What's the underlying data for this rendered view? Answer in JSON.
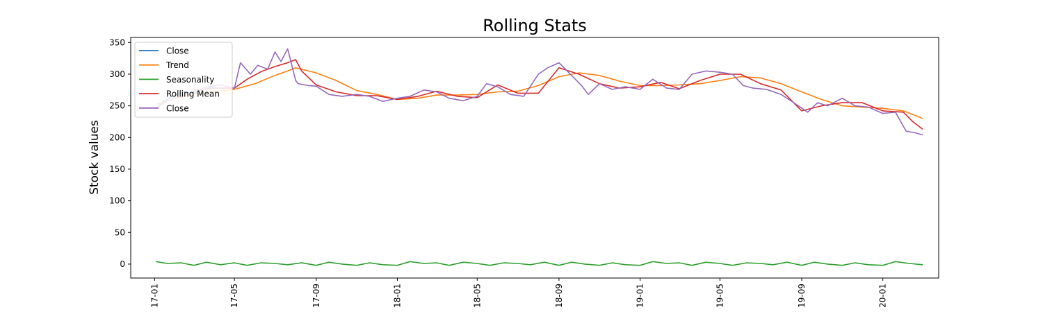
{
  "chart_data": {
    "type": "line",
    "title": "Rolling Stats",
    "xlabel": "",
    "ylabel": "Stock values",
    "ylim": [
      -22,
      358
    ],
    "xlim": [
      "2016-11-26",
      "2020-03-25"
    ],
    "yticks": [
      0,
      50,
      100,
      150,
      200,
      250,
      300,
      350
    ],
    "xticks": [
      "17-01",
      "17-05",
      "17-09",
      "18-01",
      "18-05",
      "18-09",
      "19-01",
      "19-05",
      "19-09",
      "20-01"
    ],
    "grid": false,
    "legend": {
      "placement": "top-left",
      "entries": [
        "Close",
        "Trend",
        "Seasonality",
        "Rolling Mean",
        "Close"
      ]
    },
    "series": [
      {
        "name": "Close",
        "color": "#1f77b4",
        "x": [
          "2017-01-03",
          "2017-01-15",
          "2017-01-31",
          "2017-02-14",
          "2017-02-28",
          "2017-03-14",
          "2017-03-31"
        ],
        "values": [
          246,
          258,
          266,
          272,
          269,
          276,
          280
        ]
      },
      {
        "name": "Trend",
        "color": "#ff7f0e",
        "x": [
          "2017-01-03",
          "2017-02-01",
          "2017-03-01",
          "2017-04-01",
          "2017-05-01",
          "2017-06-01",
          "2017-07-01",
          "2017-07-20",
          "2017-08-01",
          "2017-09-01",
          "2017-10-01",
          "2017-11-01",
          "2017-12-01",
          "2018-01-01",
          "2018-02-01",
          "2018-03-01",
          "2018-04-01",
          "2018-05-01",
          "2018-06-01",
          "2018-07-01",
          "2018-08-01",
          "2018-09-01",
          "2018-10-01",
          "2018-11-01",
          "2018-12-01",
          "2019-01-01",
          "2019-02-01",
          "2019-03-01",
          "2019-04-01",
          "2019-05-01",
          "2019-06-01",
          "2019-07-01",
          "2019-08-01",
          "2019-09-01",
          "2019-10-01",
          "2019-11-01",
          "2019-12-01",
          "2020-01-01",
          "2020-02-01",
          "2020-03-01"
        ],
        "values": [
          252,
          262,
          268,
          272,
          276,
          285,
          298,
          305,
          310,
          302,
          290,
          274,
          268,
          260,
          262,
          267,
          267,
          268,
          272,
          273,
          282,
          296,
          302,
          298,
          289,
          282,
          282,
          283,
          285,
          290,
          296,
          294,
          285,
          272,
          260,
          250,
          248,
          246,
          242,
          230
        ]
      },
      {
        "name": "Seasonality",
        "color": "#2ca02c",
        "x": [
          "2017-01-03",
          "2017-01-20",
          "2017-02-10",
          "2017-03-01",
          "2017-03-20",
          "2017-04-10",
          "2017-05-01",
          "2017-05-20",
          "2017-06-10",
          "2017-07-01",
          "2017-07-20",
          "2017-08-10",
          "2017-09-01",
          "2017-09-20",
          "2017-10-10",
          "2017-11-01",
          "2017-11-20",
          "2017-12-10",
          "2018-01-01",
          "2018-01-20",
          "2018-02-10",
          "2018-03-01",
          "2018-03-20",
          "2018-04-10",
          "2018-05-01",
          "2018-05-20",
          "2018-06-10",
          "2018-07-01",
          "2018-07-20",
          "2018-08-10",
          "2018-09-01",
          "2018-09-20",
          "2018-10-10",
          "2018-11-01",
          "2018-11-20",
          "2018-12-10",
          "2019-01-01",
          "2019-01-20",
          "2019-02-10",
          "2019-03-01",
          "2019-03-20",
          "2019-04-10",
          "2019-05-01",
          "2019-05-20",
          "2019-06-10",
          "2019-07-01",
          "2019-07-20",
          "2019-08-10",
          "2019-09-01",
          "2019-09-20",
          "2019-10-10",
          "2019-11-01",
          "2019-11-20",
          "2019-12-10",
          "2020-01-01",
          "2020-01-20",
          "2020-02-10",
          "2020-03-01"
        ],
        "values": [
          4,
          1,
          2,
          -2,
          3,
          -1,
          2,
          -2,
          2,
          1,
          -1,
          2,
          -2,
          3,
          0,
          -2,
          2,
          -1,
          -2,
          4,
          1,
          2,
          -2,
          3,
          1,
          -2,
          2,
          1,
          -1,
          3,
          -2,
          3,
          0,
          -2,
          2,
          -1,
          -2,
          4,
          1,
          2,
          -2,
          3,
          1,
          -2,
          2,
          1,
          -1,
          3,
          -2,
          3,
          0,
          -2,
          2,
          -1,
          -2,
          4,
          1,
          -1
        ]
      },
      {
        "name": "Rolling Mean",
        "color": "#d62728",
        "x": [
          "2017-03-01",
          "2017-04-01",
          "2017-05-01",
          "2017-05-20",
          "2017-06-10",
          "2017-07-01",
          "2017-07-20",
          "2017-08-01",
          "2017-08-10",
          "2017-09-01",
          "2017-10-01",
          "2017-11-01",
          "2017-12-01",
          "2018-01-01",
          "2018-02-01",
          "2018-03-01",
          "2018-04-01",
          "2018-05-01",
          "2018-06-01",
          "2018-07-01",
          "2018-08-01",
          "2018-09-01",
          "2018-10-01",
          "2018-11-01",
          "2018-12-01",
          "2019-01-01",
          "2019-02-01",
          "2019-03-01",
          "2019-04-01",
          "2019-05-01",
          "2019-06-01",
          "2019-07-01",
          "2019-08-01",
          "2019-09-01",
          "2019-10-01",
          "2019-11-01",
          "2019-12-01",
          "2020-01-01",
          "2020-02-01",
          "2020-02-15",
          "2020-03-01"
        ],
        "values": [
          275,
          278,
          278,
          292,
          304,
          312,
          318,
          323,
          305,
          283,
          272,
          266,
          266,
          260,
          265,
          273,
          265,
          263,
          283,
          270,
          270,
          310,
          300,
          285,
          278,
          280,
          287,
          277,
          290,
          300,
          300,
          285,
          275,
          242,
          250,
          255,
          255,
          242,
          240,
          225,
          213
        ]
      },
      {
        "name": "Close",
        "color": "#9467bd",
        "x": [
          "2017-01-03",
          "2017-01-20",
          "2017-02-10",
          "2017-03-01",
          "2017-03-20",
          "2017-04-10",
          "2017-05-01",
          "2017-05-10",
          "2017-05-25",
          "2017-06-05",
          "2017-06-20",
          "2017-07-01",
          "2017-07-10",
          "2017-07-20",
          "2017-08-01",
          "2017-08-05",
          "2017-08-20",
          "2017-09-01",
          "2017-09-20",
          "2017-10-10",
          "2017-11-01",
          "2017-11-20",
          "2017-12-10",
          "2018-01-01",
          "2018-01-20",
          "2018-02-10",
          "2018-03-01",
          "2018-03-20",
          "2018-04-10",
          "2018-05-01",
          "2018-05-15",
          "2018-06-01",
          "2018-06-20",
          "2018-07-10",
          "2018-08-01",
          "2018-08-15",
          "2018-09-01",
          "2018-09-20",
          "2018-10-05",
          "2018-10-15",
          "2018-11-01",
          "2018-11-20",
          "2018-12-10",
          "2019-01-01",
          "2019-01-20",
          "2019-02-10",
          "2019-03-01",
          "2019-03-20",
          "2019-04-10",
          "2019-05-01",
          "2019-05-20",
          "2019-06-05",
          "2019-06-20",
          "2019-07-10",
          "2019-08-01",
          "2019-08-20",
          "2019-09-10",
          "2019-09-25",
          "2019-10-10",
          "2019-11-01",
          "2019-11-20",
          "2019-12-10",
          "2020-01-01",
          "2020-01-20",
          "2020-02-05",
          "2020-02-20",
          "2020-03-01"
        ],
        "values": [
          246,
          258,
          266,
          272,
          280,
          283,
          278,
          318,
          300,
          314,
          308,
          335,
          320,
          340,
          290,
          285,
          282,
          281,
          268,
          265,
          268,
          265,
          257,
          262,
          265,
          275,
          272,
          262,
          258,
          265,
          285,
          280,
          268,
          265,
          300,
          310,
          318,
          298,
          282,
          268,
          285,
          276,
          280,
          276,
          292,
          278,
          276,
          300,
          305,
          303,
          300,
          282,
          278,
          276,
          268,
          255,
          240,
          255,
          250,
          262,
          250,
          248,
          238,
          240,
          210,
          207,
          204
        ]
      }
    ]
  }
}
